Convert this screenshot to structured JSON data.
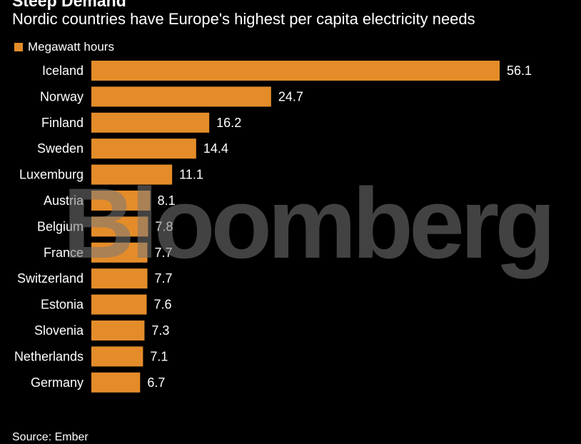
{
  "colors": {
    "bar": "#e48c2a",
    "background": "#000000",
    "text": "#ffffff",
    "watermark": "#787878"
  },
  "header": {
    "title": "Steep Demand",
    "subtitle": "Nordic countries have Europe's highest per capita electricity needs"
  },
  "watermark": "Bloomberg",
  "source": "Source: Ember",
  "chart_data": {
    "type": "bar",
    "orientation": "horizontal",
    "title": "Steep Demand",
    "subtitle": "Nordic countries have Europe's highest per capita electricity needs",
    "legend": {
      "position": "top-left",
      "entries": [
        "Megawatt hours"
      ]
    },
    "categories": [
      "Iceland",
      "Norway",
      "Finland",
      "Sweden",
      "Luxemburg",
      "Austria",
      "Belgium",
      "France",
      "Switzerland",
      "Estonia",
      "Slovenia",
      "Netherlands",
      "Germany"
    ],
    "series": [
      {
        "name": "Megawatt hours",
        "values": [
          56.1,
          24.7,
          16.2,
          14.4,
          11.1,
          8.1,
          7.8,
          7.7,
          7.7,
          7.6,
          7.3,
          7.1,
          6.7
        ]
      }
    ],
    "data_labels": [
      "56.1",
      "24.7",
      "16.2",
      "14.4",
      "11.1",
      "8.1",
      "7.8",
      "7.7",
      "7.7",
      "7.6",
      "7.3",
      "7.1",
      "6.7"
    ],
    "xlim": [
      0,
      56.1
    ],
    "grid": false
  }
}
